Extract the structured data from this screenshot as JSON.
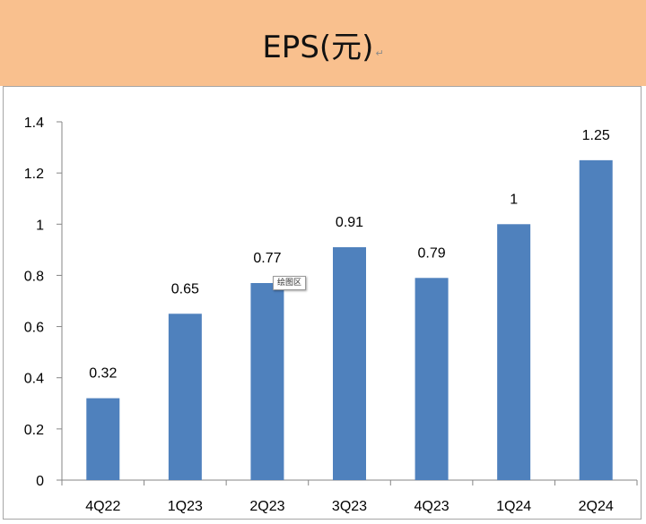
{
  "header": {
    "title": "EPS(元)",
    "paragraph_mark": "↵"
  },
  "tooltip": {
    "text": "绘图区"
  },
  "colors": {
    "header_bg": "#f9c08e",
    "bar": "#4f81bd"
  },
  "chart_data": {
    "type": "bar",
    "title": "EPS(元)",
    "categories": [
      "4Q22",
      "1Q23",
      "2Q23",
      "3Q23",
      "4Q23",
      "1Q24",
      "2Q24"
    ],
    "values": [
      0.32,
      0.65,
      0.77,
      0.91,
      0.79,
      1,
      1.25
    ],
    "data_labels": [
      "0.32",
      "0.65",
      "0.77",
      "0.91",
      "0.79",
      "1",
      "1.25"
    ],
    "ylim": [
      0,
      1.4
    ],
    "yticks": [
      "0",
      "0.2",
      "0.4",
      "0.6",
      "0.8",
      "1",
      "1.2",
      "1.4"
    ],
    "grid": false,
    "legend": "none"
  }
}
